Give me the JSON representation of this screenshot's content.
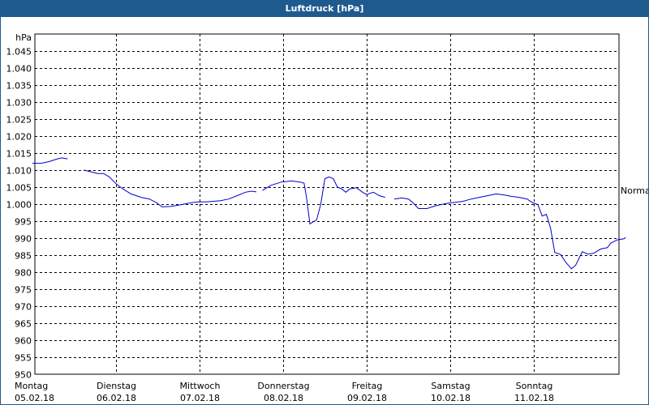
{
  "chart_data": {
    "type": "line",
    "title": "Luftdruck [hPa]",
    "ylabel": "hPa",
    "ylim": [
      950,
      1050
    ],
    "yticks": [
      950,
      955,
      960,
      965,
      970,
      975,
      980,
      985,
      990,
      995,
      1000,
      1005,
      1010,
      1015,
      1020,
      1025,
      1030,
      1035,
      1040,
      1045
    ],
    "ytick_labels": [
      "950",
      "955",
      "960",
      "965",
      "970",
      "975",
      "980",
      "985",
      "990",
      "995",
      "1.000",
      "1.005",
      "1.010",
      "1.015",
      "1.020",
      "1.025",
      "1.030",
      "1.035",
      "1.040",
      "1.045"
    ],
    "xlim": [
      0,
      7
    ],
    "x_ticks": [
      {
        "x": 0,
        "day": "Montag",
        "date": "05.02.18"
      },
      {
        "x": 1,
        "day": "Dienstag",
        "date": "06.02.18"
      },
      {
        "x": 2,
        "day": "Mittwoch",
        "date": "07.02.18"
      },
      {
        "x": 3,
        "day": "Donnerstag",
        "date": "08.02.18"
      },
      {
        "x": 4,
        "day": "Freitag",
        "date": "09.02.18"
      },
      {
        "x": 5,
        "day": "Samstag",
        "date": "10.02.18"
      },
      {
        "x": 6,
        "day": "Sonntag",
        "date": "11.02.18"
      }
    ],
    "grid": true,
    "reference_line": {
      "label": "Normal",
      "value": 1004
    },
    "series": [
      {
        "color": "#0000cc",
        "segments": [
          [
            [
              0.0,
              1012.0
            ],
            [
              0.1,
              1012.0
            ],
            [
              0.2,
              1012.5
            ],
            [
              0.3,
              1013.3
            ],
            [
              0.35,
              1013.6
            ],
            [
              0.42,
              1013.3
            ]
          ],
          [
            [
              0.62,
              1010.0
            ],
            [
              0.7,
              1009.5
            ],
            [
              0.78,
              1009.0
            ],
            [
              0.85,
              1009.0
            ],
            [
              0.92,
              1008.0
            ],
            [
              1.0,
              1006.0
            ],
            [
              1.08,
              1004.5
            ],
            [
              1.18,
              1003.0
            ],
            [
              1.3,
              1002.0
            ],
            [
              1.4,
              1001.5
            ],
            [
              1.48,
              1000.5
            ],
            [
              1.55,
              999.2
            ],
            [
              1.65,
              999.3
            ],
            [
              1.75,
              999.7
            ],
            [
              1.85,
              1000.2
            ],
            [
              1.95,
              1000.6
            ],
            [
              2.1,
              1000.7
            ],
            [
              2.25,
              1001.0
            ],
            [
              2.35,
              1001.5
            ],
            [
              2.45,
              1002.5
            ],
            [
              2.55,
              1003.5
            ],
            [
              2.62,
              1003.8
            ],
            [
              2.68,
              1003.6
            ]
          ],
          [
            [
              2.75,
              1004.0
            ],
            [
              2.85,
              1005.5
            ],
            [
              2.98,
              1006.5
            ],
            [
              3.1,
              1006.8
            ],
            [
              3.2,
              1006.5
            ],
            [
              3.25,
              1006.2
            ],
            [
              3.28,
              1002.0
            ],
            [
              3.32,
              994.2
            ],
            [
              3.36,
              994.8
            ],
            [
              3.4,
              995.3
            ],
            [
              3.45,
              1000.0
            ],
            [
              3.5,
              1007.5
            ],
            [
              3.55,
              1008.0
            ],
            [
              3.6,
              1007.5
            ],
            [
              3.65,
              1005.0
            ],
            [
              3.7,
              1004.5
            ],
            [
              3.75,
              1003.5
            ],
            [
              3.8,
              1004.5
            ],
            [
              3.88,
              1004.8
            ],
            [
              3.95,
              1003.5
            ],
            [
              4.0,
              1002.8
            ],
            [
              4.08,
              1003.5
            ],
            [
              4.15,
              1002.5
            ],
            [
              4.22,
              1002.0
            ]
          ],
          [
            [
              4.33,
              1001.5
            ],
            [
              4.42,
              1001.8
            ],
            [
              4.5,
              1001.5
            ],
            [
              4.55,
              1000.5
            ],
            [
              4.62,
              998.7
            ],
            [
              4.72,
              998.7
            ],
            [
              4.82,
              999.5
            ],
            [
              4.95,
              1000.2
            ],
            [
              5.05,
              1000.5
            ],
            [
              5.15,
              1000.8
            ],
            [
              5.25,
              1001.5
            ],
            [
              5.35,
              1002.0
            ],
            [
              5.45,
              1002.5
            ],
            [
              5.55,
              1003.0
            ],
            [
              5.65,
              1002.7
            ],
            [
              5.72,
              1002.3
            ],
            [
              5.82,
              1002.0
            ],
            [
              5.92,
              1001.5
            ],
            [
              5.98,
              1000.5
            ],
            [
              6.05,
              999.8
            ],
            [
              6.1,
              996.5
            ],
            [
              6.15,
              997.0
            ],
            [
              6.2,
              993.0
            ],
            [
              6.25,
              985.8
            ],
            [
              6.32,
              985.2
            ],
            [
              6.38,
              983.0
            ],
            [
              6.45,
              981.0
            ],
            [
              6.5,
              982.0
            ],
            [
              6.58,
              986.0
            ],
            [
              6.65,
              985.3
            ],
            [
              6.72,
              985.6
            ],
            [
              6.8,
              986.8
            ],
            [
              6.88,
              987.2
            ],
            [
              6.92,
              988.5
            ],
            [
              7.0,
              989.5
            ],
            [
              7.08,
              989.8
            ],
            [
              7.1,
              990.2
            ]
          ]
        ]
      }
    ]
  }
}
